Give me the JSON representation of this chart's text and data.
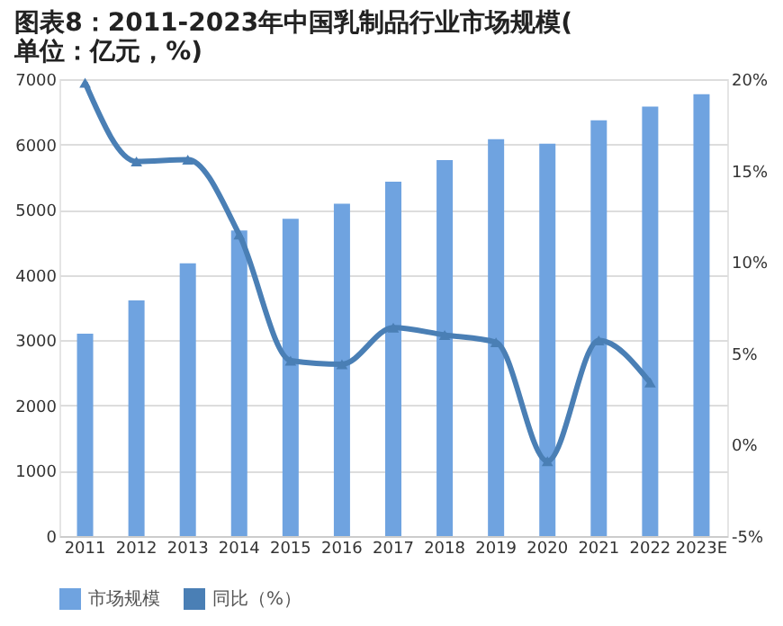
{
  "chart_data": {
    "type": "bar",
    "title": "图表8：2011-2023年中国乳制品行业市场规模(单位：亿元，%)",
    "categories": [
      "2011",
      "2012",
      "2013",
      "2014",
      "2015",
      "2016",
      "2017",
      "2018",
      "2019",
      "2020",
      "2021",
      "2022",
      "2023E"
    ],
    "series": [
      {
        "name": "市场规模",
        "color": "#6fa3e0",
        "values": [
          3100,
          3610,
          4180,
          4680,
          4860,
          5090,
          5430,
          5760,
          6080,
          6010,
          6370,
          6580,
          6770
        ]
      },
      {
        "name": "同比（%）",
        "type": "line",
        "axis": "y2",
        "color": "#4a7fb5",
        "marker": "triangle",
        "values": [
          19.8,
          15.5,
          15.6,
          11.5,
          4.6,
          4.4,
          6.4,
          6.0,
          5.6,
          -0.9,
          5.7,
          3.4,
          null
        ]
      }
    ],
    "ylim": [
      0,
      7000
    ],
    "yticks": [
      0,
      1000,
      2000,
      3000,
      4000,
      5000,
      6000,
      7000
    ],
    "y2lim": [
      -5,
      20
    ],
    "y2ticks": [
      {
        "value": -5,
        "label": "-5%"
      },
      {
        "value": 0,
        "label": "0%"
      },
      {
        "value": 5,
        "label": "5%"
      },
      {
        "value": 10,
        "label": "10%"
      },
      {
        "value": 15,
        "label": "15%"
      },
      {
        "value": 20,
        "label": "20%"
      }
    ],
    "grid": "y",
    "legend": "bottom"
  }
}
